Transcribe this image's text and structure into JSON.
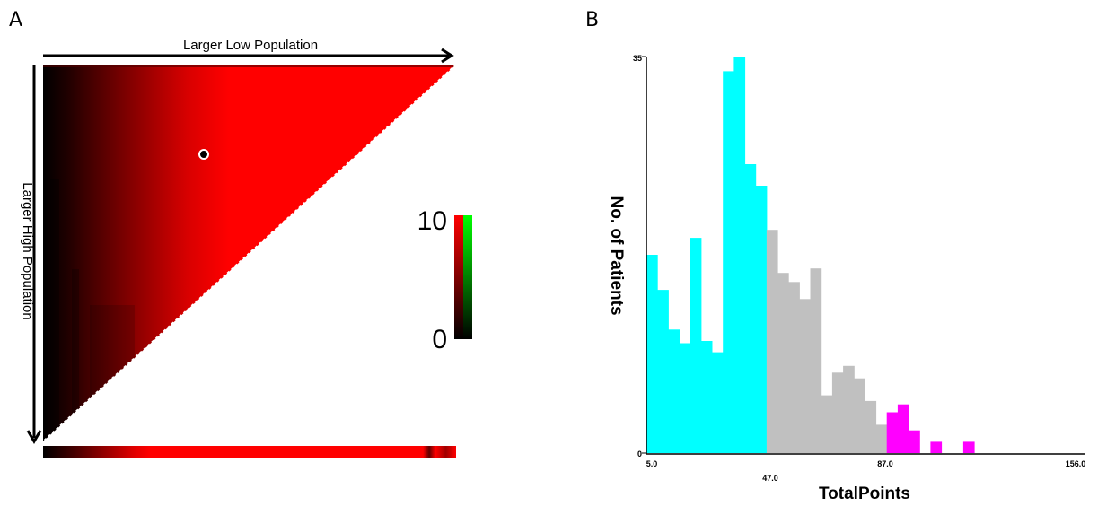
{
  "panel_a": {
    "letter": "A",
    "top_arrow_label": "Larger Low Population",
    "left_arrow_label": "Larger High Population",
    "colorbar": {
      "max_label": "10",
      "min_label": "0",
      "colors": [
        "#000000",
        "#ff0000",
        "#00ff00"
      ]
    },
    "fill_color": "#ff0000"
  },
  "panel_b": {
    "letter": "B",
    "ylabel": "No. of Patients",
    "xlabel": "TotalPoints",
    "ytick_top": "35",
    "ytick_bottom": "0",
    "xticks": [
      "5.0",
      "47.0",
      "87.0",
      "156.0"
    ]
  },
  "chart_data": [
    {
      "type": "heatmap",
      "description_axes": {
        "x": "Larger Low Population",
        "y": "Larger High Population"
      },
      "color_scale": {
        "min": 0,
        "max": 10,
        "colors": [
          "#000000",
          "#ff0000",
          "#00ff00"
        ]
      }
    },
    {
      "type": "bar",
      "xlabel": "TotalPoints",
      "ylabel": "No. of Patients",
      "xlim": [
        5,
        156
      ],
      "ylim": [
        0,
        35
      ],
      "bin_width": 3.775,
      "groups": [
        {
          "range": [
            5,
            47
          ],
          "color": "#00ffff"
        },
        {
          "range": [
            47,
            87
          ],
          "color": "#c0c0c0"
        },
        {
          "range": [
            87,
            156
          ],
          "color": "#ff00ff"
        }
      ],
      "values": [
        17.5,
        14.4,
        10.9,
        9.7,
        19,
        9.9,
        8.9,
        33.7,
        35,
        25.5,
        23.6,
        19.7,
        15.9,
        15.1,
        13.6,
        16.3,
        5.1,
        7.1,
        7.7,
        6.6,
        4.6,
        2.5,
        3.6,
        4.3,
        2.0,
        0,
        1.0,
        0,
        0,
        1.0
      ]
    }
  ]
}
